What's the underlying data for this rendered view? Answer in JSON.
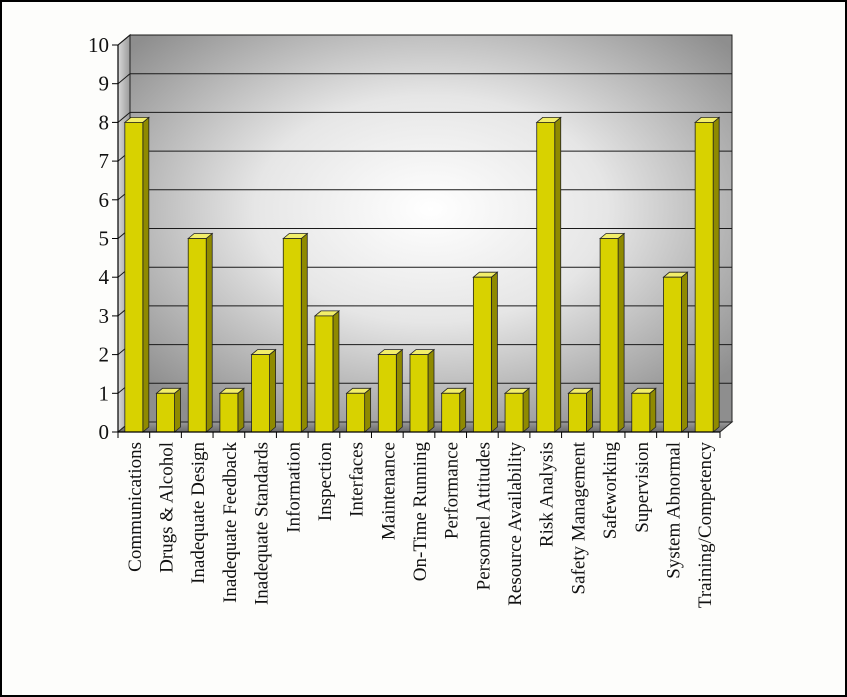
{
  "chart_data": {
    "type": "bar",
    "title": "",
    "xlabel": "",
    "ylabel": "",
    "ylim": [
      0,
      10
    ],
    "yticks": [
      "0",
      "1",
      "2",
      "3",
      "4",
      "5",
      "6",
      "7",
      "8",
      "9",
      "10"
    ],
    "grid": true,
    "categories": [
      "Communications",
      "Drugs & Alcohol",
      "Inadequate Design",
      "Inadequate Feedback",
      "Inadequate Standards",
      "Information",
      "Inspection",
      "Interfaces",
      "Maintenance",
      "On-Time Running",
      "Performance",
      "Personnel Attitudes",
      "Resource Availability",
      "Risk Analysis",
      "Safety Management",
      "Safeworking",
      "Supervision",
      "System Abnormal",
      "Training/Competency"
    ],
    "values": [
      8,
      1,
      5,
      1,
      2,
      5,
      3,
      1,
      2,
      2,
      1,
      4,
      1,
      8,
      1,
      5,
      1,
      4,
      8
    ],
    "colors": {
      "bar_front": "#d8d200",
      "bar_side": "#8f8a00",
      "bar_top": "#f2ee6a",
      "wall_dark": "#8c8c8c",
      "wall_light": "#ffffff",
      "floor": "#7a7a7a"
    }
  }
}
